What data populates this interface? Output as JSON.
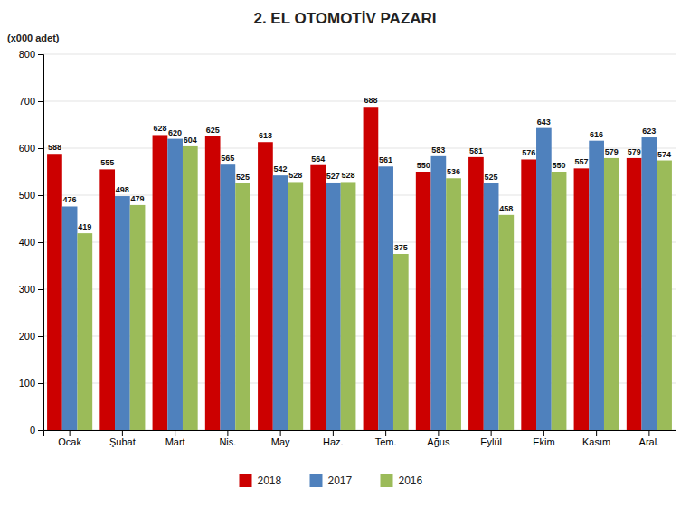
{
  "chart_data": {
    "type": "bar",
    "title": "2. EL OTOMOTİV PAZARI",
    "ylabel": "(x000 adet)",
    "categories": [
      "Ocak",
      "Şubat",
      "Mart",
      "Nis.",
      "May",
      "Haz.",
      "Tem.",
      "Ağus",
      "Eylül",
      "Ekim",
      "Kasım",
      "Aral."
    ],
    "series": [
      {
        "name": "2018",
        "color": "#cc0000",
        "values": [
          588,
          555,
          628,
          625,
          613,
          564,
          688,
          550,
          581,
          576,
          557,
          579
        ]
      },
      {
        "name": "2017",
        "color": "#4f81bd",
        "values": [
          476,
          498,
          620,
          565,
          542,
          527,
          561,
          583,
          525,
          643,
          616,
          623
        ]
      },
      {
        "name": "2016",
        "color": "#9bbb59",
        "values": [
          419,
          479,
          604,
          525,
          528,
          528,
          375,
          536,
          458,
          550,
          579,
          574
        ]
      }
    ],
    "ylim": [
      0,
      800
    ],
    "yticks": [
      0,
      100,
      200,
      300,
      400,
      500,
      600,
      700,
      800
    ],
    "grid": true,
    "legend": "bottom",
    "data_labels": true
  }
}
